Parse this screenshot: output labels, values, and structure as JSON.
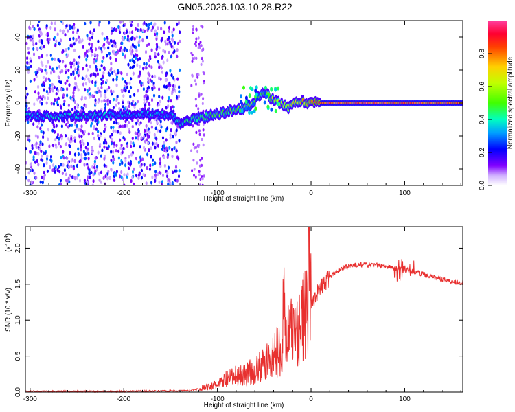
{
  "title": "GN05.2026.103.10.28.R22",
  "chart_data": [
    {
      "id": "spectrogram",
      "type": "heatmap",
      "xlabel": "Height of straight line (km)",
      "ylabel": "Frequency (Hz)",
      "xlim": [
        -305,
        162
      ],
      "ylim": [
        -50,
        50
      ],
      "xticks": [
        -300,
        -200,
        -100,
        0,
        100
      ],
      "yticks": [
        -40,
        -20,
        0,
        20,
        40
      ],
      "colorbar": {
        "label": "Normalized spectral amplitude",
        "range": [
          0,
          1
        ],
        "ticks": [
          0.0,
          0.2,
          0.4,
          0.6,
          0.8
        ],
        "colormap": [
          "#ffffff",
          "#8000ff",
          "#0000ff",
          "#00c0ff",
          "#00ff80",
          "#80ff00",
          "#ffff00",
          "#ff8000",
          "#ff0000",
          "#ff00a0"
        ]
      },
      "noise_region": {
        "x_range": [
          -305,
          -140
        ],
        "amplitude": 0.2
      },
      "ridge": [
        {
          "x": -300,
          "freq": -8,
          "amplitude": 0.35
        },
        {
          "x": -250,
          "freq": -8,
          "amplitude": 0.35
        },
        {
          "x": -200,
          "freq": -7,
          "amplitude": 0.35
        },
        {
          "x": -150,
          "freq": -7,
          "amplitude": 0.3
        },
        {
          "x": -140,
          "freq": -13,
          "amplitude": 0.4
        },
        {
          "x": -120,
          "freq": -9,
          "amplitude": 0.45
        },
        {
          "x": -100,
          "freq": -7,
          "amplitude": 0.5
        },
        {
          "x": -80,
          "freq": -4,
          "amplitude": 0.5
        },
        {
          "x": -65,
          "freq": -2,
          "amplitude": 0.55
        },
        {
          "x": -52,
          "freq": 7,
          "amplitude": 0.55
        },
        {
          "x": -40,
          "freq": 2,
          "amplitude": 0.6
        },
        {
          "x": -25,
          "freq": -3,
          "amplitude": 0.65
        },
        {
          "x": -15,
          "freq": 1,
          "amplitude": 0.75
        },
        {
          "x": 0,
          "freq": 0,
          "amplitude": 0.8
        },
        {
          "x": 20,
          "freq": 0,
          "amplitude": 0.95
        },
        {
          "x": 80,
          "freq": 0,
          "amplitude": 0.95
        },
        {
          "x": 162,
          "freq": 0,
          "amplitude": 0.9
        }
      ]
    },
    {
      "id": "snr",
      "type": "line",
      "xlabel": "Height of straight line (km)",
      "ylabel": "SNR (10 * v/v)",
      "y_multiplier": "(x10",
      "y_multiplier_exp": "4",
      "y_multiplier_close": ")",
      "xlim": [
        -305,
        162
      ],
      "ylim": [
        0,
        2.3
      ],
      "xticks": [
        -300,
        -200,
        -100,
        0,
        100
      ],
      "yticks": [
        0.0,
        0.5,
        1.0,
        1.5,
        2.0
      ],
      "line_color": "#e8302f",
      "series": [
        {
          "x": [
            -305,
            -200,
            -130,
            -115,
            -100,
            -90,
            -80,
            -70,
            -60,
            -50,
            -40,
            -30,
            -20,
            -10,
            -5,
            0,
            10,
            20,
            30,
            40,
            50,
            60,
            70,
            80,
            90,
            100,
            110,
            120,
            130,
            140,
            150,
            162
          ],
          "values": [
            0.01,
            0.01,
            0.02,
            0.06,
            0.1,
            0.18,
            0.22,
            0.25,
            0.3,
            0.38,
            0.5,
            0.65,
            0.85,
            0.95,
            1.15,
            1.25,
            1.45,
            1.6,
            1.7,
            1.75,
            1.77,
            1.77,
            1.76,
            1.75,
            1.72,
            1.7,
            1.67,
            1.64,
            1.6,
            1.57,
            1.54,
            1.52
          ]
        }
      ]
    }
  ]
}
